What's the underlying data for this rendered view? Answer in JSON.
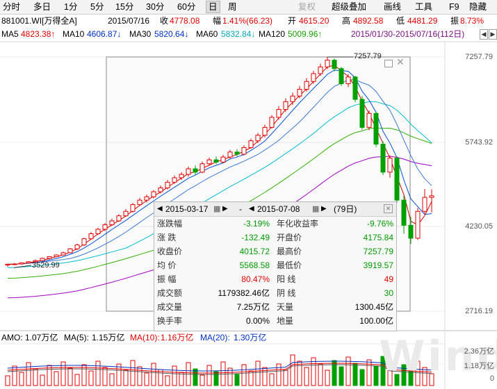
{
  "toolbar": {
    "items": [
      {
        "label": "分时",
        "state": "normal"
      },
      {
        "label": "多日",
        "state": "normal"
      },
      {
        "label": "1分",
        "state": "normal"
      },
      {
        "label": "5分",
        "state": "normal"
      },
      {
        "label": "15分",
        "state": "normal"
      },
      {
        "label": "30分",
        "state": "normal"
      },
      {
        "label": "60分",
        "state": "normal"
      },
      {
        "label": "日",
        "state": "active"
      },
      {
        "label": "周",
        "state": "normal"
      },
      {
        "label": "复权",
        "state": "disabled"
      },
      {
        "label": "超级叠加",
        "state": "normal"
      },
      {
        "label": "画线",
        "state": "normal"
      },
      {
        "label": "工具",
        "state": "normal"
      },
      {
        "label": "F9",
        "state": "normal"
      },
      {
        "label": "隐藏",
        "state": "normal"
      }
    ]
  },
  "quote": {
    "code": "881001.WI[万得全A]",
    "date": "2015/07/16",
    "close_label": "收",
    "close": "4778.08",
    "range_label": "幅",
    "change": "1.41%(66.23)",
    "open_label": "开",
    "open": "4615.20",
    "high_label": "高",
    "high": "4892.58",
    "low_label": "低",
    "low": "4481.29",
    "amp_label": "振",
    "amp": "8.73%"
  },
  "ma": {
    "ma5_label": "MA5",
    "ma5": "4823.38↑",
    "ma10_label": "MA10",
    "ma10": "4606.87↓",
    "ma30_label": "MA30",
    "ma30": "5820.64↓",
    "ma60_label": "MA60",
    "ma60": "5832.84↓",
    "ma120_label": "MA120",
    "ma120": "5009.96↑",
    "range_text": "2015/01/30-2015/07/16(112日)"
  },
  "axis": {
    "price_labels": [
      "7257.79",
      "5743.92",
      "4230.05",
      "2716.19"
    ],
    "vol_labels": [
      "2.36万亿",
      "1.18万亿",
      "0"
    ]
  },
  "annotations": {
    "high_mark": "7257.79",
    "low_mark": "3529.99"
  },
  "tooltip": {
    "start_date": "2015-03-17",
    "end_date": "2015-07-08",
    "sep": "-",
    "days": "(79日)",
    "rows": [
      {
        "l1": "涨跌幅",
        "v1": "-3.19%",
        "c1": "green",
        "l2": "年化收益率",
        "v2": "-9.76%",
        "c2": "green"
      },
      {
        "l1": "涨    跌",
        "v1": "-132.49",
        "c1": "green",
        "l2": "开盘价",
        "v2": "4175.84",
        "c2": "green"
      },
      {
        "l1": "收盘价",
        "v1": "4015.72",
        "c1": "green",
        "l2": "最高价",
        "v2": "7257.79",
        "c2": "green"
      },
      {
        "l1": "均    价",
        "v1": "5568.58",
        "c1": "green",
        "l2": "最低价",
        "v2": "3919.57",
        "c2": "green"
      },
      {
        "l1": "振    幅",
        "v1": "80.47%",
        "c1": "red",
        "l2": "阳    线",
        "v2": "49",
        "c2": "red"
      },
      {
        "l1": "成交额",
        "v1": "1179382.46亿",
        "c1": "black",
        "l2": "阴    线",
        "v2": "30",
        "c2": "green"
      },
      {
        "l1": "成交量",
        "v1": "7.25万亿",
        "c1": "black",
        "l2": "天量",
        "v2": "1300.45亿",
        "c2": "black"
      },
      {
        "l1": "换手率",
        "v1": "0.00%",
        "c1": "black",
        "l2": "地量",
        "v2": "100.00亿",
        "c2": "black"
      }
    ]
  },
  "volume": {
    "amo_label": "AMO:",
    "amo": "1.07万亿",
    "ma5_label": "MA(5):",
    "ma5": "1.15万亿",
    "ma10_label": "MA(10):",
    "ma10": "1.16万亿",
    "ma20_label": "MA(20):",
    "ma20": "1.30万亿"
  },
  "watermark": "Wind",
  "colors": {
    "up": "#e00000",
    "down": "#00a000",
    "ma5": "#cc0000",
    "ma10": "#0050d0",
    "ma30": "#3a78d0",
    "ma60": "#00bcd0",
    "ma120": "#30b000",
    "ma250": "#a000c0"
  },
  "chart_data": {
    "type": "candlestick",
    "y_range": [
      2716.19,
      7257.79
    ],
    "price_ticks": [
      7257.79,
      5743.92,
      4230.05,
      2716.19
    ],
    "candles_approx": [
      [
        3540,
        3555,
        3510,
        3565
      ],
      [
        3555,
        3560,
        3540,
        3575
      ],
      [
        3560,
        3580,
        3545,
        3590
      ],
      [
        3580,
        3600,
        3570,
        3610
      ],
      [
        3600,
        3620,
        3590,
        3640
      ],
      [
        3620,
        3660,
        3605,
        3675
      ],
      [
        3660,
        3690,
        3640,
        3700
      ],
      [
        3690,
        3720,
        3680,
        3735
      ],
      [
        3720,
        3760,
        3710,
        3780
      ],
      [
        3760,
        3830,
        3750,
        3845
      ],
      [
        3830,
        3900,
        3810,
        3920
      ],
      [
        3900,
        4010,
        3880,
        4030
      ],
      [
        4010,
        4100,
        3990,
        4130
      ],
      [
        4100,
        4180,
        4080,
        4210
      ],
      [
        4180,
        4260,
        4150,
        4290
      ],
      [
        4260,
        4330,
        4240,
        4370
      ],
      [
        4330,
        4420,
        4310,
        4450
      ],
      [
        4420,
        4500,
        4400,
        4540
      ],
      [
        4500,
        4620,
        4480,
        4650
      ],
      [
        4620,
        4700,
        4600,
        4740
      ],
      [
        4700,
        4760,
        4660,
        4800
      ],
      [
        4760,
        4850,
        4730,
        4880
      ],
      [
        4850,
        4920,
        4820,
        4960
      ],
      [
        4920,
        5020,
        4890,
        5060
      ],
      [
        5020,
        5100,
        4990,
        5140
      ],
      [
        5100,
        5160,
        5060,
        5200
      ],
      [
        5160,
        5260,
        5120,
        5300
      ],
      [
        5260,
        5200,
        5150,
        5320
      ],
      [
        5200,
        5350,
        5180,
        5390
      ],
      [
        5350,
        5420,
        5320,
        5460
      ],
      [
        5420,
        5380,
        5340,
        5480
      ],
      [
        5380,
        5470,
        5360,
        5510
      ],
      [
        5470,
        5560,
        5440,
        5600
      ],
      [
        5560,
        5520,
        5480,
        5610
      ],
      [
        5520,
        5640,
        5500,
        5680
      ],
      [
        5640,
        5760,
        5620,
        5800
      ],
      [
        5760,
        5860,
        5720,
        5900
      ],
      [
        5860,
        6000,
        5820,
        6050
      ],
      [
        6000,
        6180,
        5980,
        6220
      ],
      [
        6180,
        6320,
        6140,
        6380
      ],
      [
        6320,
        6460,
        6280,
        6520
      ],
      [
        6460,
        6560,
        6400,
        6620
      ],
      [
        6560,
        6680,
        6520,
        6740
      ],
      [
        6680,
        6820,
        6640,
        6880
      ],
      [
        6820,
        6960,
        6780,
        7010
      ],
      [
        6960,
        7080,
        6920,
        7140
      ],
      [
        7080,
        7200,
        7040,
        7257.79
      ],
      [
        7200,
        7050,
        7000,
        7230
      ],
      [
        7050,
        6780,
        6740,
        7080
      ],
      [
        6780,
        6900,
        6720,
        6950
      ],
      [
        6900,
        6500,
        6450,
        6920
      ],
      [
        6500,
        6000,
        5960,
        6560
      ],
      [
        6000,
        6250,
        5950,
        6300
      ],
      [
        6250,
        5700,
        5650,
        6280
      ],
      [
        5700,
        5200,
        5150,
        5750
      ],
      [
        5200,
        5450,
        5100,
        5500
      ],
      [
        5450,
        4700,
        4650,
        5480
      ],
      [
        4700,
        4250,
        4100,
        4780
      ],
      [
        4250,
        4020,
        3919.57,
        4400
      ],
      [
        4020,
        4500,
        3990,
        4560
      ],
      [
        4500,
        4750,
        4460,
        4900
      ],
      [
        4750,
        4778.08,
        4481.29,
        4892.58
      ]
    ]
  }
}
